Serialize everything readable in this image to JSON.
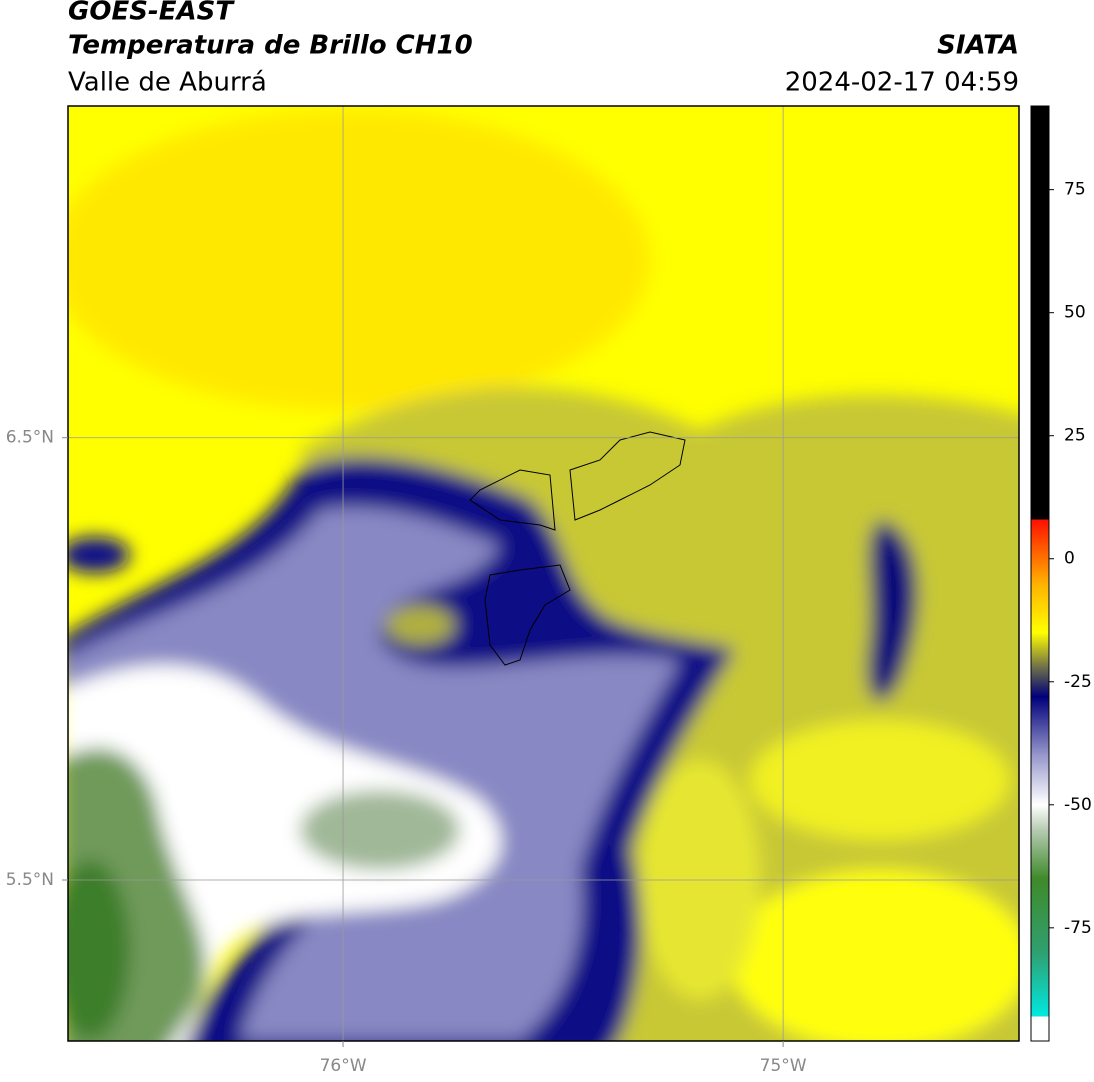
{
  "header": {
    "title": "GOES-EAST",
    "subtitle": "Temperatura de Brillo CH10",
    "region": "Valle de Aburrá",
    "source": "SIATA",
    "datetime": "2024-02-17 04:59"
  },
  "map": {
    "xlim": [
      -76.625,
      -74.464
    ],
    "ylim": [
      5.136,
      7.25
    ],
    "xticks": [
      {
        "value": -76,
        "label": "76°W"
      },
      {
        "value": -75,
        "label": "75°W"
      }
    ],
    "yticks": [
      {
        "value": 6.5,
        "label": "6.5°N"
      },
      {
        "value": 5.5,
        "label": "5.5°N"
      }
    ],
    "grid": true
  },
  "colorbar": {
    "lim": [
      -98,
      92
    ],
    "ticks": [
      75,
      50,
      25,
      0,
      -25,
      -50,
      -75
    ],
    "stops": [
      {
        "value": -98,
        "color": "#ffffff"
      },
      {
        "value": -93,
        "color": "#ffffff"
      },
      {
        "value": -93,
        "color": "#00e8e0"
      },
      {
        "value": -80,
        "color": "#30a070"
      },
      {
        "value": -65,
        "color": "#3f8a2a"
      },
      {
        "value": -55,
        "color": "#b8ccb4"
      },
      {
        "value": -50,
        "color": "#ffffff"
      },
      {
        "value": -40,
        "color": "#9898cc"
      },
      {
        "value": -28,
        "color": "#00007a"
      },
      {
        "value": -22,
        "color": "#70704a"
      },
      {
        "value": -15,
        "color": "#ffff00"
      },
      {
        "value": -5,
        "color": "#ffb000"
      },
      {
        "value": 8,
        "color": "#ff1000"
      },
      {
        "value": 8,
        "color": "#000000"
      },
      {
        "value": 92,
        "color": "#000000"
      }
    ]
  }
}
